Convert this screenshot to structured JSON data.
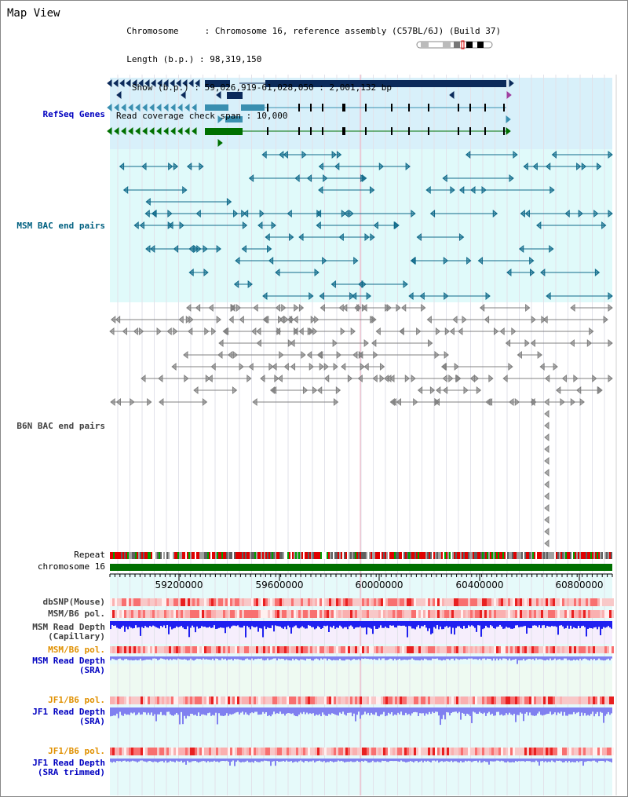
{
  "header": {
    "title": "Map View",
    "info_lines": [
      "  Chromosome     : Chromosome 16, reference assembly (C57BL/6J) (Build 37)",
      "  Length (b.p.) : 98,319,150",
      "   Show (b.p.) : 59,026,919-61,028,050 : 2,001,132 bp",
      "Read coverage check span : 10,000"
    ]
  },
  "tracks": {
    "refseq": "RefSeq Genes",
    "msm_bac": "MSM BAC end pairs",
    "b6n_bac": "B6N BAC end pairs",
    "repeat": "Repeat",
    "chromosome": "chromosome 16",
    "dbsnp": "dbSNP(Mouse)",
    "msm_b6_pol_1": "MSM/B6 pol.",
    "msm_depth_cap": "MSM Read Depth\n(Capillary)",
    "msm_b6_pol_2": "MSM/B6 pol.",
    "msm_depth_sra": "MSM Read Depth\n(SRA)",
    "jf1_b6_pol_1": "JF1/B6 pol.",
    "jf1_depth_sra": "JF1 Read Depth\n(SRA)",
    "jf1_b6_pol_2": "JF1/B6 pol.",
    "jf1_depth_trim": "JF1 Read Depth\n(SRA trimmed)"
  },
  "axis": {
    "ticks": [
      "59200000",
      "59600000",
      "60000000",
      "60400000",
      "60800000"
    ]
  },
  "colors": {
    "refseq_bg": "#d8f0fa",
    "msm_bg": "#e0fafa",
    "b6n_bg": "#ffffff",
    "gene_navy": "#0b2a5a",
    "gene_teal": "#3a8fb0",
    "gene_green": "#007000",
    "msm_line": "#106a8a",
    "b6n_line": "#808080",
    "chrom_green": "#007000",
    "depth_blue": "#2020f0",
    "depth_violet": "#8080f0",
    "label_blue": "#0000c0",
    "label_teal": "#006080",
    "label_orange": "#e09000",
    "label_gray": "#404040"
  }
}
